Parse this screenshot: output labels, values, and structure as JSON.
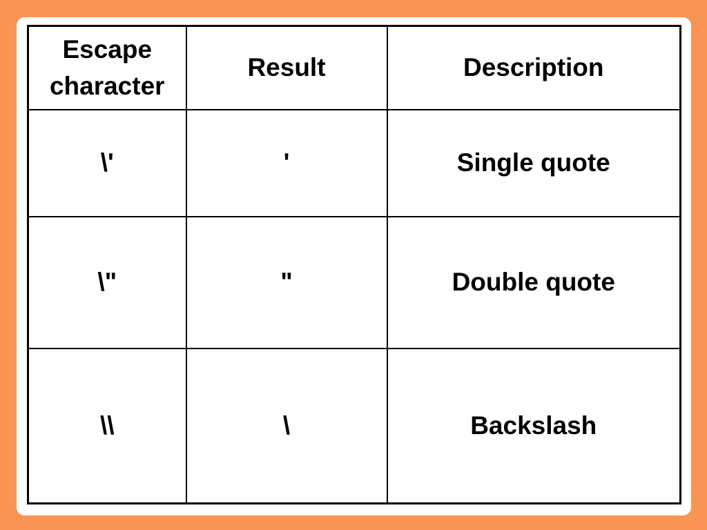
{
  "table": {
    "headers": [
      "Escape character",
      "Result",
      "Description"
    ],
    "rows": [
      [
        "\\'",
        "'",
        "Single quote"
      ],
      [
        "\\\"",
        "\"",
        "Double quote"
      ],
      [
        "\\\\",
        "\\",
        "Backslash"
      ]
    ]
  },
  "colors": {
    "background": "#F99455",
    "card": "#FFFFFF",
    "border": "#000000",
    "text": "#000000"
  }
}
